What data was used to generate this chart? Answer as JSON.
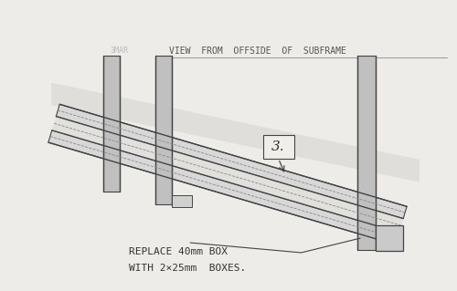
{
  "bg_color": "#eeece9",
  "line_color": "#444444",
  "shade_color": "#c0c0c0",
  "shade_light": "#d8d8d8",
  "title_text": "VIEW  FROM  OFFSIDE  OF  SUBFRAME",
  "mirror_text": "3MAR",
  "label_number": "3.",
  "label_line1": "REPLACE 40mm BOX",
  "label_line2": "WITH 2×25mm  BOXES.",
  "figsize": [
    5.0,
    3.19
  ],
  "dpi": 100
}
